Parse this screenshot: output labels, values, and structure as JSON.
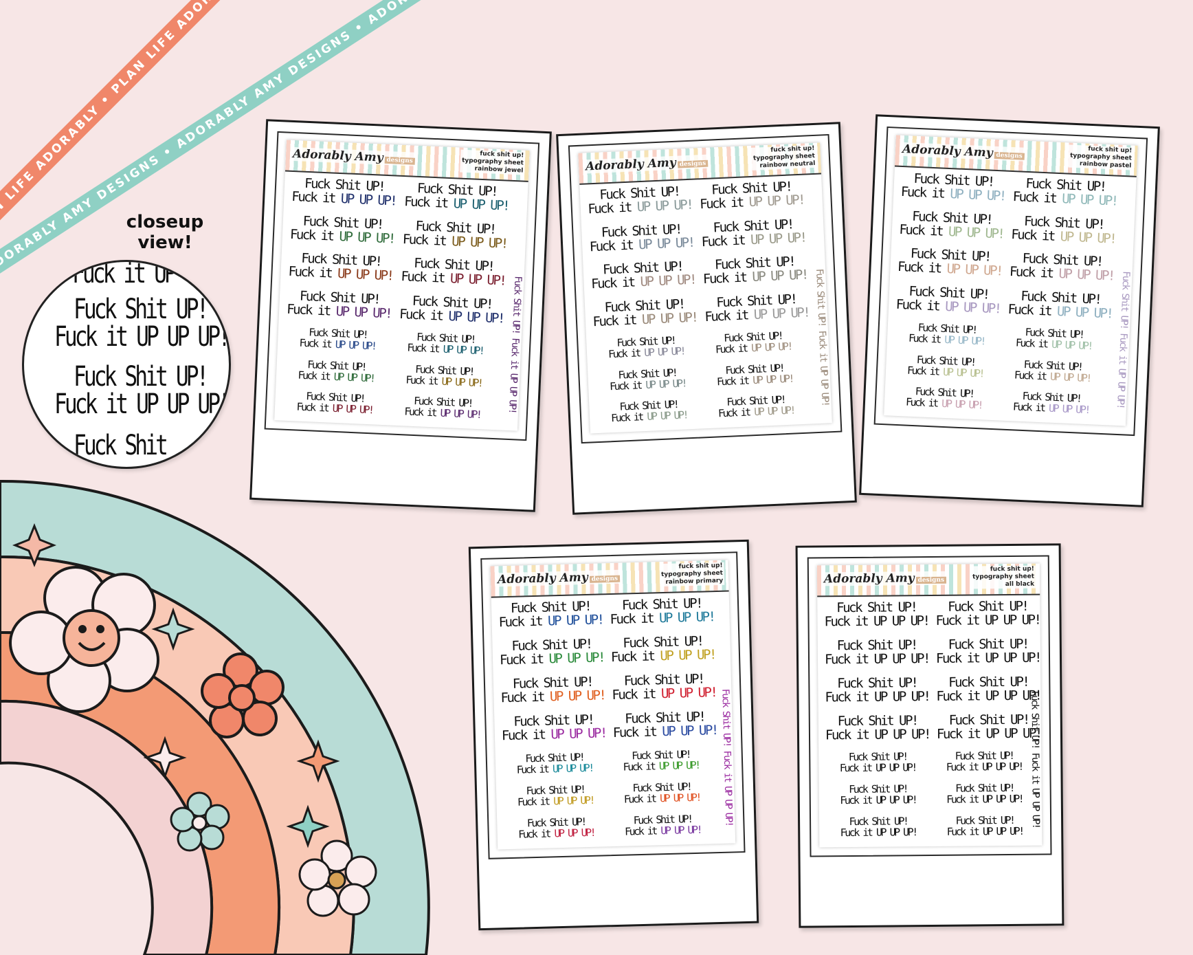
{
  "ribbons": {
    "coral_text": "PLAN LIFE ADORABLY • PLAN LIFE ADORABLY • PLAN LIFE AD",
    "mint_text": "ADORABLY AMY DESIGNS • ADORABLY AMY DESIGNS • ADORABLY AMY DESIGNS •"
  },
  "closeup": {
    "label_line1": "closeup",
    "label_line2": "view!",
    "lines": [
      "Fuck it UP",
      "Fuck Shit UP!",
      "Fuck it UP UP UP!",
      "Fuck Shit UP!",
      "Fuck it UP UP UP!",
      "Fuck Shit"
    ]
  },
  "phrase": {
    "line1": "Fuck Shit UP!",
    "line2_prefix": "Fuck it ",
    "line2_suffix": "UP UP UP!"
  },
  "vertical_text": "Fuck Shit UP! Fuck it UP UP UP!",
  "brand": {
    "name": "Adorably Amy",
    "sub": "designs"
  },
  "sheets": [
    {
      "title": "fuck shit up!",
      "subtitle": "typography sheet",
      "variant": "rainbow jewel",
      "colors": [
        "#1f2f6b",
        "#1a5e6e",
        "#2f6b3a",
        "#7a5a1a",
        "#8a3a1a",
        "#7a1e2e",
        "#5a2a6e",
        "#1f2f6b",
        "#2a4a8a",
        "#1a5e6e",
        "#2f6b3a",
        "#8a6a1a",
        "#7a1e2e",
        "#5a2a6e"
      ]
    },
    {
      "title": "fuck shit up!",
      "subtitle": "typography sheet",
      "variant": "rainbow neutral",
      "colors": [
        "#8a9a9a",
        "#a09a90",
        "#7a8a9a",
        "#9a9a8a",
        "#a08a80",
        "#8a8a80",
        "#9a8a7a",
        "#9a9a9a",
        "#8a8a9a",
        "#a09080",
        "#7a8a8a",
        "#9a8a7a",
        "#8a9a8a",
        "#a09a8a"
      ]
    },
    {
      "title": "fuck shit up!",
      "subtitle": "typography sheet",
      "variant": "rainbow pastel",
      "colors": [
        "#8fb0c0",
        "#8fb8b8",
        "#a0b890",
        "#c0b890",
        "#d0a890",
        "#c0a0a8",
        "#a898c0",
        "#8fb0c0",
        "#98b8c8",
        "#a0c0a8",
        "#b8c090",
        "#c0a890",
        "#c8a0b0",
        "#a898c8"
      ]
    },
    {
      "title": "fuck shit up!",
      "subtitle": "typography sheet",
      "variant": "rainbow primary",
      "colors": [
        "#1f4f9a",
        "#1f7a9a",
        "#2a8a3a",
        "#c0a020",
        "#e06020",
        "#d02030",
        "#9a2aa0",
        "#2a4aa0",
        "#1a8a9a",
        "#3a9a2a",
        "#c09a20",
        "#e05020",
        "#c02040",
        "#7a3aa0"
      ]
    },
    {
      "title": "fuck shit up!",
      "subtitle": "typography sheet",
      "variant": "all black",
      "colors": [
        "#111111",
        "#111111",
        "#111111",
        "#111111",
        "#111111",
        "#111111",
        "#111111",
        "#111111",
        "#111111",
        "#111111",
        "#111111",
        "#111111",
        "#111111",
        "#111111"
      ]
    }
  ]
}
